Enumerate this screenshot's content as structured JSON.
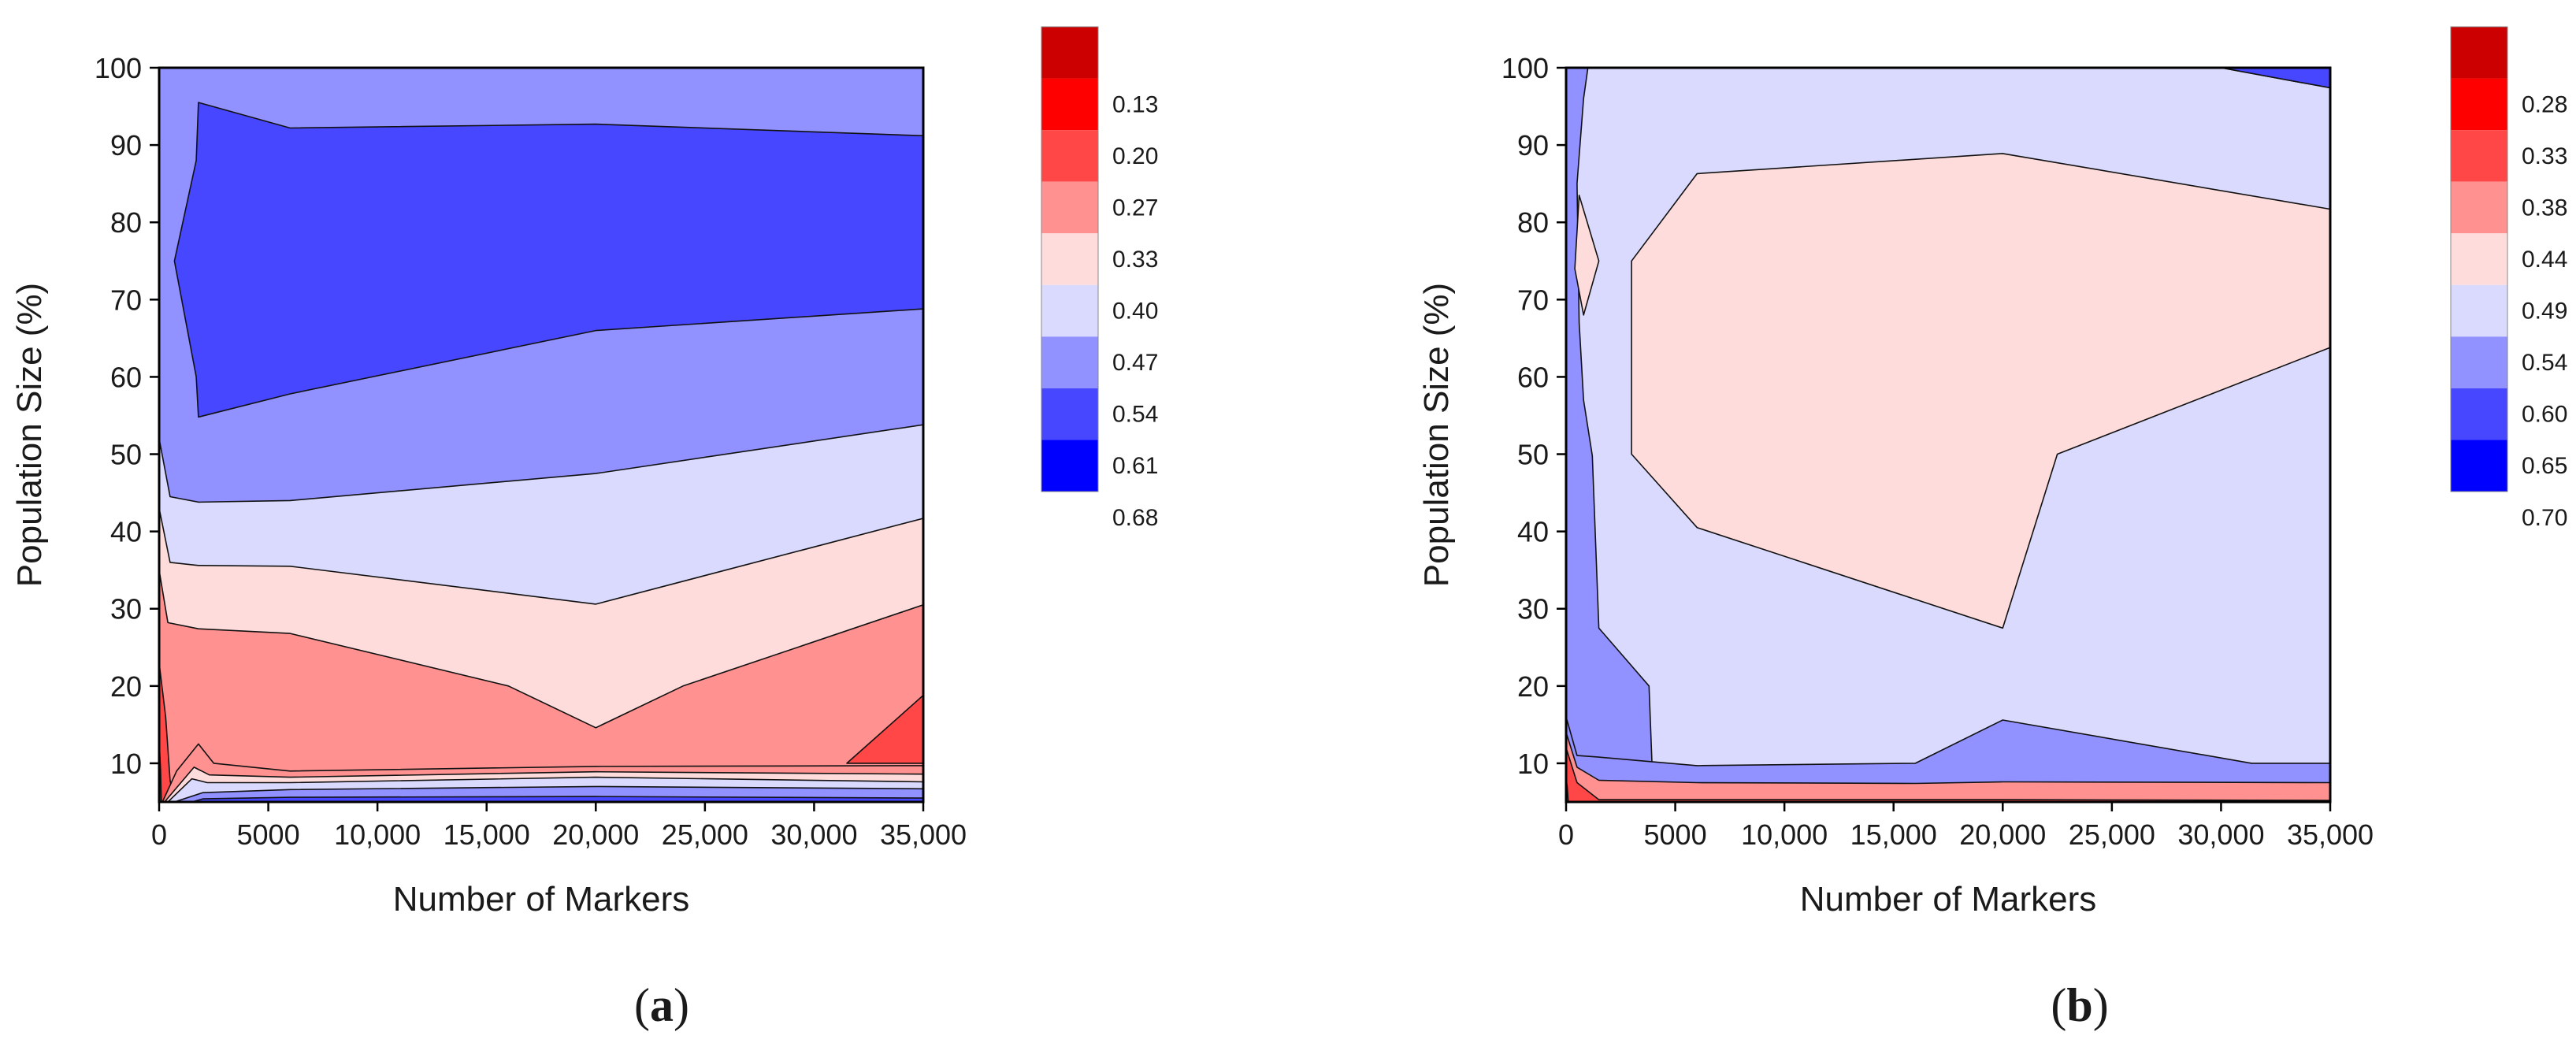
{
  "colors": {
    "bands": [
      "#0000ff",
      "#4747ff",
      "#9191ff",
      "#dadaff",
      "#ffdcdc",
      "#ff9191",
      "#ff4747",
      "#ff0000",
      "#cc0000"
    ]
  },
  "chart_data": [
    {
      "type": "contour",
      "panel_label": {
        "open": "(",
        "letter": "a",
        "close": ")"
      },
      "xlabel": "Number of Markers",
      "ylabel": "Population Size (%)",
      "xlim": [
        0,
        35000
      ],
      "ylim": [
        5,
        100
      ],
      "x_ticks": [
        0,
        5000,
        10000,
        15000,
        20000,
        25000,
        30000,
        35000
      ],
      "x_tick_labels": [
        "0",
        "5000",
        "10,000",
        "15,000",
        "20,000",
        "25,000",
        "30,000",
        "35,000"
      ],
      "y_ticks": [
        10,
        20,
        30,
        40,
        50,
        60,
        70,
        80,
        90,
        100
      ],
      "y_tick_labels": [
        "10",
        "20",
        "30",
        "40",
        "50",
        "60",
        "70",
        "80",
        "90",
        "100"
      ],
      "legend_levels": [
        "0.13",
        "0.20",
        "0.27",
        "0.33",
        "0.40",
        "0.47",
        "0.54",
        "0.61",
        "0.68"
      ],
      "regions": [
        {
          "band": 6,
          "points": [
            [
              0,
              5
            ],
            [
              35000,
              5
            ],
            [
              35000,
              100
            ],
            [
              0,
              100
            ]
          ]
        },
        {
          "band": 7,
          "points": [
            [
              1800,
              95.5
            ],
            [
              6000,
              92.2
            ],
            [
              20000,
              92.7
            ],
            [
              35000,
              91.2
            ],
            [
              35000,
              68.8
            ],
            [
              20000,
              66
            ],
            [
              6000,
              57.8
            ],
            [
              1800,
              54.8
            ],
            [
              1700,
              60
            ],
            [
              700,
              75
            ],
            [
              1700,
              88
            ]
          ]
        },
        {
          "band": 5,
          "points": [
            [
              0,
              5
            ],
            [
              35000,
              5
            ],
            [
              35000,
              53.8
            ],
            [
              20000,
              47.5
            ],
            [
              6000,
              44
            ],
            [
              1800,
              43.8
            ],
            [
              500,
              44.5
            ],
            [
              0,
              52
            ]
          ]
        },
        {
          "band": 4,
          "points": [
            [
              0,
              5
            ],
            [
              35000,
              5
            ],
            [
              35000,
              41.7
            ],
            [
              20000,
              30.6
            ],
            [
              6000,
              35.5
            ],
            [
              1800,
              35.6
            ],
            [
              500,
              36
            ],
            [
              0,
              43
            ]
          ]
        },
        {
          "band": 3,
          "points": [
            [
              0,
              5
            ],
            [
              35000,
              5
            ],
            [
              35000,
              30.5
            ],
            [
              24000,
              20
            ],
            [
              20000,
              14.6
            ],
            [
              16000,
              20
            ],
            [
              6000,
              26.8
            ],
            [
              1800,
              27.4
            ],
            [
              400,
              28.2
            ],
            [
              0,
              35
            ]
          ]
        },
        {
          "band": 2,
          "points": [
            [
              0,
              5
            ],
            [
              700,
              5
            ],
            [
              500,
              7.8
            ],
            [
              300,
              16
            ],
            [
              0,
              23
            ]
          ]
        },
        {
          "band": 2,
          "points": [
            [
              31500,
              10
            ],
            [
              35000,
              18.8
            ],
            [
              35000,
              10
            ]
          ]
        },
        {
          "band": 1,
          "points": [
            [
              0,
              5
            ],
            [
              100,
              5
            ],
            [
              70,
              9
            ],
            [
              0,
              13
            ]
          ]
        },
        {
          "band": 3,
          "points": [
            [
              150,
              5
            ],
            [
              35000,
              5
            ],
            [
              35000,
              9.7
            ],
            [
              20000,
              9.6
            ],
            [
              6000,
              9
            ],
            [
              2500,
              10
            ],
            [
              1800,
              12.5
            ],
            [
              800,
              9
            ]
          ]
        },
        {
          "band": 4,
          "points": [
            [
              250,
              5
            ],
            [
              35000,
              5
            ],
            [
              35000,
              8.6
            ],
            [
              20000,
              8.9
            ],
            [
              6000,
              8.2
            ],
            [
              2300,
              8.5
            ],
            [
              1600,
              9.5
            ]
          ]
        },
        {
          "band": 5,
          "points": [
            [
              400,
              5
            ],
            [
              35000,
              5
            ],
            [
              35000,
              7.6
            ],
            [
              20000,
              8.2
            ],
            [
              6000,
              7.5
            ],
            [
              2200,
              7.5
            ],
            [
              1500,
              8
            ]
          ]
        },
        {
          "band": 6,
          "points": [
            [
              700,
              5
            ],
            [
              35000,
              5
            ],
            [
              35000,
              6.7
            ],
            [
              20000,
              7
            ],
            [
              6000,
              6.6
            ],
            [
              2000,
              6.2
            ]
          ]
        },
        {
          "band": 7,
          "points": [
            [
              1500,
              5
            ],
            [
              35000,
              5
            ],
            [
              35000,
              5.5
            ],
            [
              20000,
              5.7
            ],
            [
              6000,
              5.6
            ],
            [
              2000,
              5.4
            ]
          ]
        }
      ]
    },
    {
      "type": "contour",
      "panel_label": {
        "open": "(",
        "letter": "b",
        "close": ")"
      },
      "xlabel": "Number of Markers",
      "ylabel": "Population Size (%)",
      "xlim": [
        0,
        35000
      ],
      "ylim": [
        5,
        100
      ],
      "x_ticks": [
        0,
        5000,
        10000,
        15000,
        20000,
        25000,
        30000,
        35000
      ],
      "x_tick_labels": [
        "0",
        "5000",
        "10,000",
        "15,000",
        "20,000",
        "25,000",
        "30,000",
        "35,000"
      ],
      "y_ticks": [
        10,
        20,
        30,
        40,
        50,
        60,
        70,
        80,
        90,
        100
      ],
      "y_tick_labels": [
        "10",
        "20",
        "30",
        "40",
        "50",
        "60",
        "70",
        "80",
        "90",
        "100"
      ],
      "legend_levels": [
        "0.28",
        "0.33",
        "0.38",
        "0.44",
        "0.49",
        "0.54",
        "0.60",
        "0.65",
        "0.70"
      ],
      "regions": [
        {
          "band": 6,
          "points": [
            [
              0,
              5
            ],
            [
              35000,
              5
            ],
            [
              35000,
              100
            ],
            [
              0,
              100
            ]
          ]
        },
        {
          "band": 5,
          "points": [
            [
              1000,
              100
            ],
            [
              30000,
              100
            ],
            [
              35000,
              97.4
            ],
            [
              35000,
              5
            ],
            [
              4000,
              5
            ],
            [
              3800,
              20
            ],
            [
              1500,
              27.5
            ],
            [
              1200,
              49.8
            ],
            [
              800,
              57
            ],
            [
              600,
              67
            ],
            [
              500,
              85
            ],
            [
              800,
              96
            ]
          ]
        },
        {
          "band": 7,
          "points": [
            [
              30000,
              100
            ],
            [
              35000,
              100
            ],
            [
              35000,
              97.4
            ]
          ]
        },
        {
          "band": 4,
          "points": [
            [
              3000,
              75
            ],
            [
              6000,
              86.3
            ],
            [
              20000,
              88.9
            ],
            [
              35000,
              81.7
            ],
            [
              35000,
              63.8
            ],
            [
              22500,
              50
            ],
            [
              20000,
              27.5
            ],
            [
              6000,
              40.5
            ],
            [
              3000,
              50
            ]
          ]
        },
        {
          "band": 4,
          "points": [
            [
              600,
              83.5
            ],
            [
              1500,
              75
            ],
            [
              800,
              68
            ],
            [
              400,
              74
            ]
          ]
        },
        {
          "band": 6,
          "points": [
            [
              0,
              5
            ],
            [
              35000,
              5
            ],
            [
              35000,
              10
            ],
            [
              31400,
              10
            ],
            [
              20000,
              15.6
            ],
            [
              16000,
              10
            ],
            [
              6000,
              9.7
            ],
            [
              1500,
              10.8
            ],
            [
              500,
              11
            ],
            [
              0,
              16
            ]
          ]
        },
        {
          "band": 3,
          "points": [
            [
              0,
              5
            ],
            [
              35000,
              5
            ],
            [
              35000,
              7.5
            ],
            [
              20000,
              7.6
            ],
            [
              16000,
              7.4
            ],
            [
              6000,
              7.5
            ],
            [
              1500,
              7.8
            ],
            [
              500,
              9.5
            ],
            [
              0,
              14
            ]
          ]
        },
        {
          "band": 2,
          "points": [
            [
              0,
              5
            ],
            [
              35000,
              5
            ],
            [
              35000,
              5.2
            ],
            [
              20000,
              5.3
            ],
            [
              6000,
              5.3
            ],
            [
              1500,
              5.3
            ],
            [
              500,
              7.5
            ],
            [
              0,
              12
            ]
          ]
        },
        {
          "band": 1,
          "points": [
            [
              0,
              5
            ],
            [
              100,
              5
            ],
            [
              50,
              7
            ],
            [
              0,
              8
            ]
          ]
        }
      ]
    }
  ]
}
